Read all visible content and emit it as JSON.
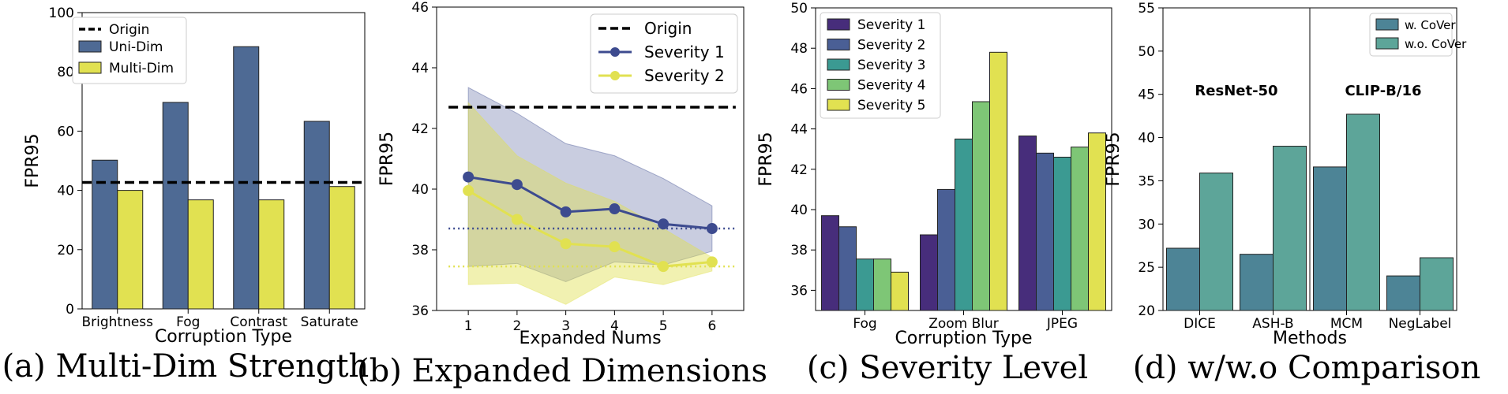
{
  "chart_data": [
    {
      "type": "bar",
      "caption": "(a) Multi-Dim Strength",
      "xlabel": "Corruption Type",
      "ylabel": "FPR95",
      "ylim": [
        0,
        100
      ],
      "yticks": [
        0,
        20,
        40,
        60,
        80,
        100
      ],
      "categories": [
        "Brightness",
        "Fog",
        "Contrast",
        "Saturate"
      ],
      "series": [
        {
          "name": "Uni-Dim",
          "color": "#4e6a94",
          "values": [
            50.2,
            69.7,
            88.5,
            63.3
          ]
        },
        {
          "name": "Multi-Dim",
          "color": "#e1e151",
          "values": [
            40.0,
            36.8,
            36.8,
            41.3
          ]
        }
      ],
      "reference_lines": [
        {
          "name": "Origin",
          "value": 42.7,
          "color": "#000000",
          "style": "dashed"
        }
      ],
      "legend": "top-left"
    },
    {
      "type": "line",
      "caption": "(b) Expanded Dimensions",
      "xlabel": "Expanded Nums",
      "ylabel": "FPR95",
      "ylim": [
        36,
        46
      ],
      "yticks": [
        36,
        38,
        40,
        42,
        44,
        46
      ],
      "x": [
        1,
        2,
        3,
        4,
        5,
        6
      ],
      "series": [
        {
          "name": "Severity 1",
          "color": "#3d4b8f",
          "values": [
            40.4,
            40.15,
            39.25,
            39.35,
            38.85,
            38.7
          ],
          "upper": [
            43.35,
            42.5,
            41.5,
            41.1,
            40.35,
            39.45
          ],
          "lower": [
            37.45,
            37.55,
            36.95,
            37.6,
            37.5,
            37.95
          ],
          "mean_line": 38.7
        },
        {
          "name": "Severity 2",
          "color": "#e1e151",
          "values": [
            39.95,
            39.0,
            38.2,
            38.1,
            37.45,
            37.6
          ],
          "upper": [
            42.85,
            41.1,
            40.2,
            39.6,
            38.7,
            37.75
          ],
          "lower": [
            36.85,
            36.9,
            36.2,
            37.1,
            36.85,
            37.3
          ],
          "mean_line": 37.45
        }
      ],
      "reference_lines": [
        {
          "name": "Origin",
          "value": 42.7,
          "color": "#000000",
          "style": "dashed"
        }
      ],
      "legend": "top-right"
    },
    {
      "type": "bar",
      "caption": "(c) Severity Level",
      "xlabel": "Corruption Type",
      "ylabel": "FPR95",
      "ylim": [
        35,
        50
      ],
      "yticks": [
        36,
        38,
        40,
        42,
        44,
        46,
        48,
        50
      ],
      "categories": [
        "Fog",
        "Zoom Blur",
        "JPEG"
      ],
      "series": [
        {
          "name": "Severity 1",
          "color": "#472d7b",
          "values": [
            39.7,
            38.75,
            43.65
          ]
        },
        {
          "name": "Severity 2",
          "color": "#4a5f95",
          "values": [
            39.15,
            41.0,
            42.8
          ]
        },
        {
          "name": "Severity 3",
          "color": "#3b9a92",
          "values": [
            37.55,
            43.5,
            42.6
          ]
        },
        {
          "name": "Severity 4",
          "color": "#7ec676",
          "values": [
            37.55,
            45.35,
            43.1
          ]
        },
        {
          "name": "Severity 5",
          "color": "#e1e151",
          "values": [
            36.9,
            47.8,
            43.8
          ]
        }
      ],
      "legend": "top-left"
    },
    {
      "type": "bar",
      "caption": "(d) w/w.o Comparison",
      "xlabel": "Methods",
      "ylabel": "FPR95",
      "ylim": [
        20,
        55
      ],
      "yticks": [
        20,
        25,
        30,
        35,
        40,
        45,
        50,
        55
      ],
      "categories": [
        "DICE",
        "ASH-B",
        "MCM",
        "NegLabel"
      ],
      "series": [
        {
          "name": "w. CoVer",
          "color": "#4d8496",
          "values": [
            27.2,
            26.5,
            36.6,
            24.0
          ]
        },
        {
          "name": "w.o. CoVer",
          "color": "#5da599",
          "values": [
            35.9,
            39.0,
            42.7,
            26.1
          ]
        }
      ],
      "group_labels": [
        "ResNet-50",
        "CLIP-B/16"
      ],
      "legend": "top-right"
    }
  ]
}
